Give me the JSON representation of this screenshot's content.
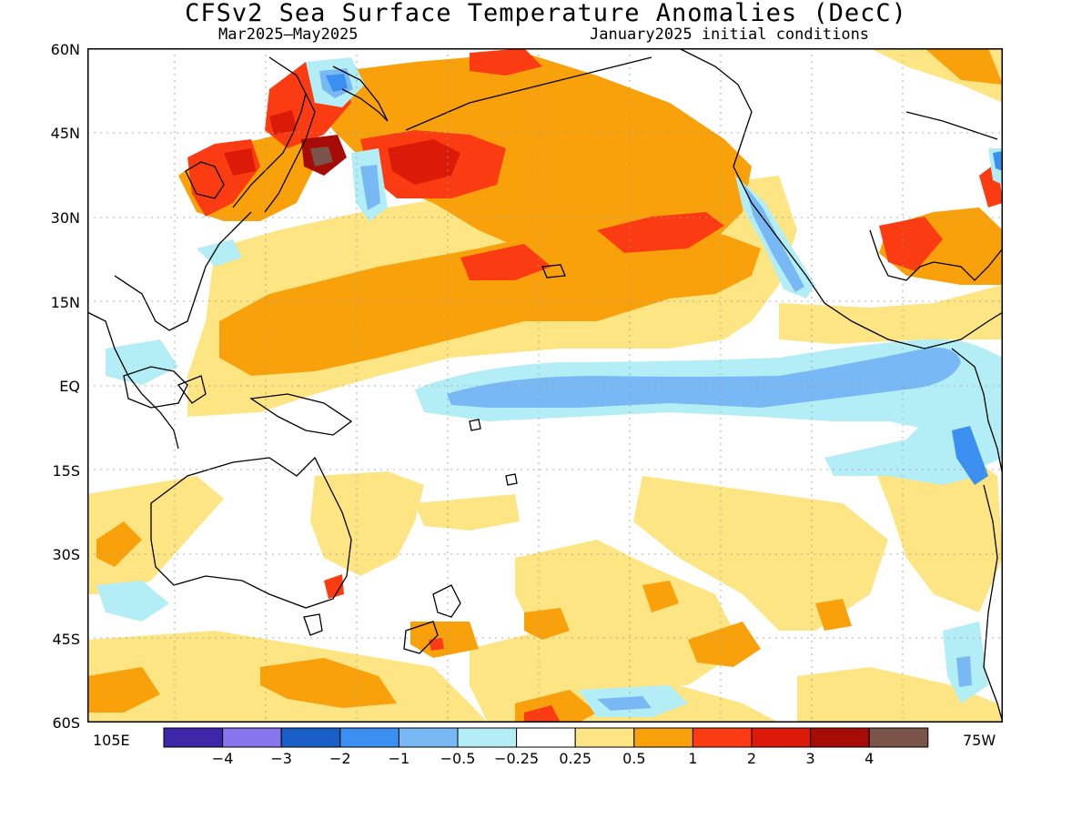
{
  "title": "CFSv2 Sea Surface Temperature Anomalies (DecC)",
  "subtitle_left": "Mar2025–May2025",
  "subtitle_right": "January2025 initial conditions",
  "lat_labels": [
    "60N",
    "45N",
    "30N",
    "15N",
    "EQ",
    "15S",
    "30S",
    "45S",
    "60S"
  ],
  "lon_labels": {
    "left": "105E",
    "right": "75W"
  },
  "colorbar": {
    "colors": [
      "#3d26a8",
      "#8775ed",
      "#1a5fc8",
      "#3b8ff0",
      "#78b8f5",
      "#b3eef6",
      "#ffffff",
      "#fde583",
      "#f9a10a",
      "#fb3c12",
      "#dc1a08",
      "#a70b05",
      "#7a5448"
    ],
    "labels": [
      "−4",
      "−3",
      "−2",
      "−1",
      "−0.5",
      "−0.25",
      "0.25",
      "0.5",
      "1",
      "2",
      "3",
      "4"
    ]
  }
}
